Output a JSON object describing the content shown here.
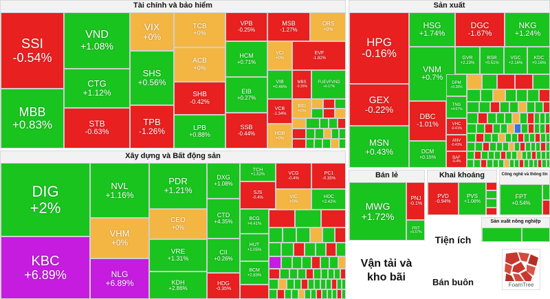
{
  "sectors": {
    "finance": "Tài chính và bảo hiểm",
    "production": "Sản xuất",
    "construction": "Xây dựng và Bất động sản",
    "retail": "Bán lẻ",
    "mining": "Khai khoáng",
    "tech": "Công nghệ và thông tin",
    "agri": "Sản xuất nông nghiệp",
    "utilities": "Tiện ích",
    "transport": "Vận tải và kho bãi",
    "wholesale": "Bán buôn"
  },
  "tiles": {
    "ssi": {
      "symbol": "SSI",
      "change": "-0.54%"
    },
    "mbb": {
      "symbol": "MBB",
      "change": "+0.83%"
    },
    "vnd": {
      "symbol": "VND",
      "change": "+1.08%"
    },
    "ctg": {
      "symbol": "CTG",
      "change": "+1.12%"
    },
    "stb": {
      "symbol": "STB",
      "change": "-0.63%"
    },
    "vix": {
      "symbol": "VIX",
      "change": "+0%"
    },
    "shs": {
      "symbol": "SHS",
      "change": "+0.56%"
    },
    "tpb": {
      "symbol": "TPB",
      "change": "-1.26%"
    },
    "tcb": {
      "symbol": "TCB",
      "change": "+0%"
    },
    "acb": {
      "symbol": "ACB",
      "change": "+0%"
    },
    "shb": {
      "symbol": "SHB",
      "change": "-0.42%"
    },
    "lpb": {
      "symbol": "LPB",
      "change": "+0.88%"
    },
    "vpb": {
      "symbol": "VPB",
      "change": "-0.25%"
    },
    "hcm": {
      "symbol": "HCM",
      "change": "+0.71%"
    },
    "eib": {
      "symbol": "EIB",
      "change": "+0.27%"
    },
    "ssb": {
      "symbol": "SSB",
      "change": "-0.44%"
    },
    "msb": {
      "symbol": "MSB",
      "change": "-1.27%"
    },
    "vci": {
      "symbol": "VCI",
      "change": "+0%"
    },
    "vib": {
      "symbol": "VIB",
      "change": "+0.46%"
    },
    "vcb": {
      "symbol": "VCB",
      "change": "-1.34%"
    },
    "hdb": {
      "symbol": "HDB",
      "change": "+0%"
    },
    "ors": {
      "symbol": "ORS",
      "change": "+0%"
    },
    "evf": {
      "symbol": "EVF",
      "change": "-1.82%"
    },
    "mbs": {
      "symbol": "MBS",
      "change": "-0.35%"
    },
    "fueverd": {
      "symbol": "FUEVFVND",
      "change": "+0.17%"
    },
    "bid": {
      "symbol": "BID",
      "change": "+0%"
    },
    "hpg": {
      "symbol": "HPG",
      "change": "-0.16%"
    },
    "gex": {
      "symbol": "GEX",
      "change": "-0.22%"
    },
    "msn": {
      "symbol": "MSN",
      "change": "+0.43%"
    },
    "hsg": {
      "symbol": "HSG",
      "change": "+1.74%"
    },
    "vnm": {
      "symbol": "VNM",
      "change": "+0.7%"
    },
    "dbc": {
      "symbol": "DBC",
      "change": "-1.01%"
    },
    "dcm": {
      "symbol": "DCM",
      "change": "+0.15%"
    },
    "dgc": {
      "symbol": "DGC",
      "change": "-1.67%"
    },
    "nkg": {
      "symbol": "NKG",
      "change": "+1.24%"
    },
    "gvr": {
      "symbol": "GVR",
      "change": "+2.23%"
    },
    "bsr": {
      "symbol": "BSR",
      "change": "+0.51%"
    },
    "vgc": {
      "symbol": "VGC",
      "change": "+2.16%"
    },
    "kdc": {
      "symbol": "KDC",
      "change": "+0.16%"
    },
    "dpm": {
      "symbol": "DPM",
      "change": "+0.28%"
    },
    "tng": {
      "symbol": "TNG",
      "change": "+4.67%"
    },
    "vhc": {
      "symbol": "VHC",
      "change": "-0.41%"
    },
    "anv": {
      "symbol": "ANV",
      "change": "-0.43%"
    },
    "baf": {
      "symbol": "BAF",
      "change": "-0.4%"
    },
    "dig": {
      "symbol": "DIG",
      "change": "+2%"
    },
    "kbc": {
      "symbol": "KBC",
      "change": "+6.89%"
    },
    "nvl": {
      "symbol": "NVL",
      "change": "+1.16%"
    },
    "vhm": {
      "symbol": "VHM",
      "change": "+0%"
    },
    "nlg": {
      "symbol": "NLG",
      "change": "+6.89%"
    },
    "pdr": {
      "symbol": "PDR",
      "change": "+1.21%"
    },
    "ceo": {
      "symbol": "CEO",
      "change": "+0%"
    },
    "vre": {
      "symbol": "VRE",
      "change": "+1.31%"
    },
    "kdh": {
      "symbol": "KDH",
      "change": "+2.86%"
    },
    "dxg": {
      "symbol": "DXG",
      "change": "+1.08%"
    },
    "ctd": {
      "symbol": "CTD",
      "change": "+4.35%"
    },
    "cii": {
      "symbol": "CII",
      "change": "+0.26%"
    },
    "hdg": {
      "symbol": "HDG",
      "change": "-0.35%"
    },
    "tch": {
      "symbol": "TCH",
      "change": "+1.52%"
    },
    "sjs": {
      "symbol": "SJS",
      "change": "-0.4%"
    },
    "bcg": {
      "symbol": "BCG",
      "change": "+4.41%"
    },
    "hut": {
      "symbol": "HUT",
      "change": "+1.05%"
    },
    "bcm": {
      "symbol": "BCM",
      "change": "+2.83%"
    },
    "vcg": {
      "symbol": "VCG",
      "change": "-0.4%"
    },
    "vic": {
      "symbol": "VIC",
      "change": "+0%"
    },
    "pc1": {
      "symbol": "PC1",
      "change": "-0.35%"
    },
    "hdc": {
      "symbol": "HDC",
      "change": "+2.42%"
    },
    "mwg": {
      "symbol": "MWG",
      "change": "+1.72%"
    },
    "pnj": {
      "symbol": "PNJ",
      "change": "-0.1%"
    },
    "frt": {
      "symbol": "FRT",
      "change": "+0.57%"
    },
    "pvd": {
      "symbol": "PVD",
      "change": "-0.94%"
    },
    "pvs": {
      "symbol": "PVS",
      "change": "+1.08%"
    },
    "fpt": {
      "symbol": "FPT",
      "change": "+0.54%"
    }
  },
  "logo": {
    "text": "FoamTree"
  },
  "colors": {
    "up": "#19c41f",
    "down": "#e8201f",
    "flat": "#f4b643",
    "ceiling": "#c61ce0"
  }
}
